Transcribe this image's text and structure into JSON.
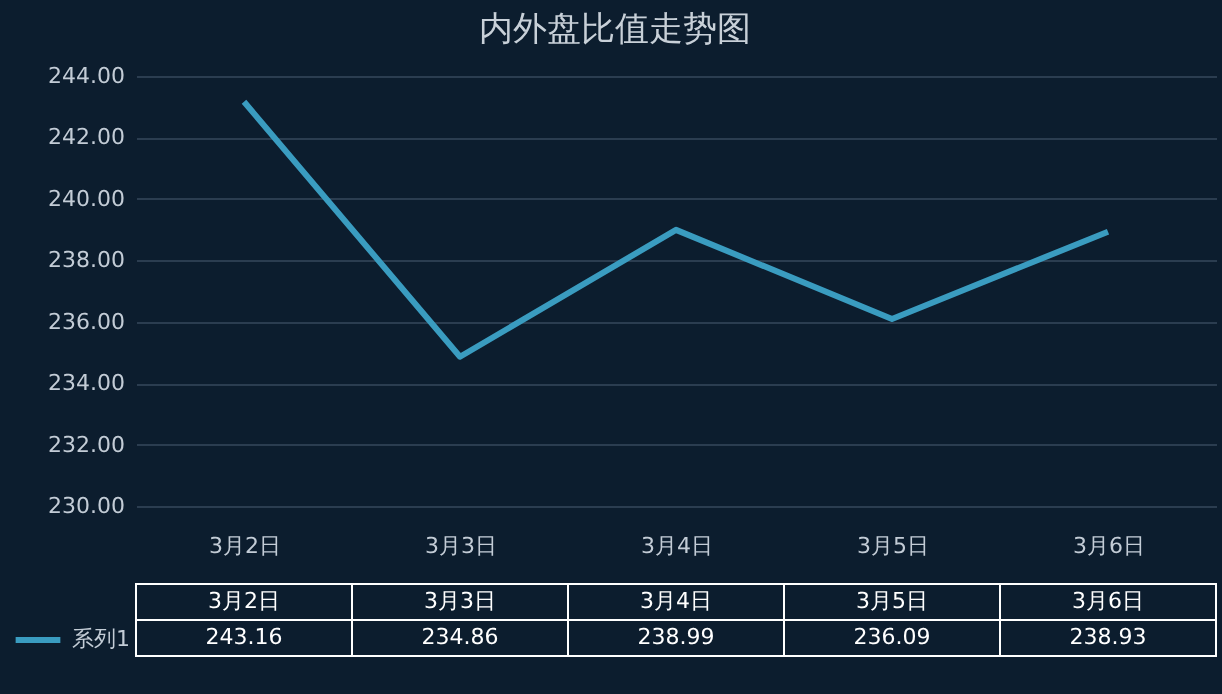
{
  "chart_data": {
    "type": "line",
    "title": "内外盘比值走势图",
    "categories": [
      "3月2日",
      "3月3日",
      "3月4日",
      "3月5日",
      "3月6日"
    ],
    "series": [
      {
        "name": "系列1",
        "color": "#3a9cc0",
        "values": [
          243.16,
          234.86,
          238.99,
          236.09,
          238.93
        ]
      }
    ],
    "ylim": [
      230,
      244
    ],
    "yticks": [
      {
        "value": 230,
        "label": "230.00"
      },
      {
        "value": 232,
        "label": "232.00"
      },
      {
        "value": 234,
        "label": "234.00"
      },
      {
        "value": 236,
        "label": "236.00"
      },
      {
        "value": 238,
        "label": "238.00"
      },
      {
        "value": 240,
        "label": "240.00"
      },
      {
        "value": 242,
        "label": "242.00"
      },
      {
        "value": 244,
        "label": "244.00"
      }
    ],
    "grid": "y",
    "data_labels": true,
    "legend": "bottom left",
    "line_style": "solid",
    "marker": "none"
  }
}
